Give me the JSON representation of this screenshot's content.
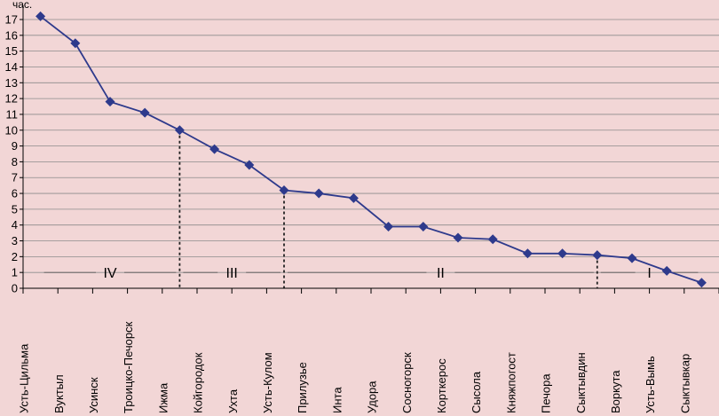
{
  "chart_data": {
    "type": "line",
    "ylabel": "час.",
    "ylim": [
      0,
      17
    ],
    "yticks": [
      0,
      1,
      2,
      3,
      4,
      5,
      6,
      7,
      8,
      9,
      10,
      11,
      12,
      13,
      14,
      15,
      16,
      17
    ],
    "grid": true,
    "categories": [
      "Усть-Цильма",
      "Вуктыл",
      "Усинск",
      "Троицко-Печорск",
      "Ижма",
      "Койгородок",
      "Ухта",
      "Усть-Кулом",
      "Прилузье",
      "Инта",
      "Удора",
      "Сосногорск",
      "Корткерос",
      "Сысола",
      "Княжпогост",
      "Печора",
      "Сыктывдин",
      "Воркута",
      "Усть-Вымь",
      "Сыктывкар"
    ],
    "series": [
      {
        "values": [
          17.2,
          15.5,
          11.8,
          11.1,
          10.0,
          8.8,
          7.8,
          6.2,
          6.0,
          5.7,
          3.9,
          3.9,
          3.2,
          3.1,
          2.2,
          2.2,
          2.1,
          1.9,
          1.1,
          0.35
        ],
        "color": "#2e3a8c"
      }
    ],
    "zones": [
      {
        "label": "IV",
        "start": 0,
        "end": 4
      },
      {
        "label": "III",
        "start": 4,
        "end": 7
      },
      {
        "label": "II",
        "start": 7,
        "end": 16
      },
      {
        "label": "I",
        "start": 16,
        "end": 19
      }
    ],
    "zone_boundaries": [
      4,
      7,
      16
    ]
  }
}
